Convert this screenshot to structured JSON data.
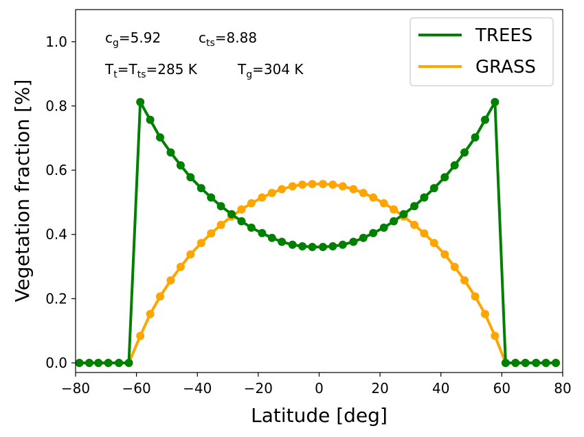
{
  "chart_data": {
    "type": "line",
    "title": "",
    "xlabel": "Latitude [deg]",
    "ylabel": "Vegetation fraction [%]",
    "xlim": [
      -80,
      80
    ],
    "ylim": [
      -0.03,
      1.1
    ],
    "xticks": [
      -80,
      -60,
      -40,
      -20,
      0,
      20,
      40,
      60,
      80
    ],
    "xtick_labels": [
      "−80",
      "−60",
      "−40",
      "−20",
      "0",
      "20",
      "40",
      "60",
      "80"
    ],
    "yticks": [
      0.0,
      0.2,
      0.4,
      0.6,
      0.8,
      1.0
    ],
    "ytick_labels": [
      "0.0",
      "0.2",
      "0.4",
      "0.6",
      "0.8",
      "1.0"
    ],
    "legend_position": "top-right",
    "x": [
      -78.75,
      -75.5,
      -72.5,
      -69.25,
      -65.75,
      -62.5,
      -58.75,
      -55.5,
      -52.25,
      -48.75,
      -45.5,
      -42.25,
      -38.75,
      -35.5,
      -32.25,
      -28.75,
      -25.5,
      -22.25,
      -18.75,
      -15.5,
      -12.25,
      -8.75,
      -5.5,
      -2.25,
      1.25,
      4.5,
      7.75,
      11.25,
      14.5,
      17.75,
      21.25,
      24.5,
      27.75,
      31.25,
      34.5,
      37.75,
      41.25,
      44.5,
      47.75,
      51.25,
      54.5,
      57.75,
      61.25,
      64.5,
      67.75,
      71.25,
      74.5,
      77.75
    ],
    "series": [
      {
        "name": "TREES",
        "color": "#008000",
        "values": [
          0,
          0,
          0,
          0,
          0,
          0,
          0.812,
          0.757,
          0.702,
          0.655,
          0.615,
          0.578,
          0.544,
          0.515,
          0.488,
          0.463,
          0.441,
          0.421,
          0.404,
          0.389,
          0.377,
          0.368,
          0.363,
          0.361,
          0.361,
          0.363,
          0.368,
          0.377,
          0.389,
          0.404,
          0.421,
          0.441,
          0.463,
          0.488,
          0.515,
          0.544,
          0.578,
          0.615,
          0.655,
          0.702,
          0.757,
          0.812,
          0,
          0,
          0,
          0,
          0,
          0
        ]
      },
      {
        "name": "GRASS",
        "color": "#FFA500",
        "values": [
          0,
          0,
          0,
          0,
          0,
          0,
          0.084,
          0.152,
          0.207,
          0.257,
          0.299,
          0.338,
          0.373,
          0.403,
          0.43,
          0.456,
          0.478,
          0.497,
          0.515,
          0.529,
          0.541,
          0.55,
          0.555,
          0.557,
          0.557,
          0.555,
          0.55,
          0.541,
          0.529,
          0.515,
          0.497,
          0.478,
          0.456,
          0.43,
          0.403,
          0.373,
          0.338,
          0.299,
          0.257,
          0.207,
          0.152,
          0.084,
          0,
          0,
          0,
          0,
          0,
          0
        ]
      }
    ],
    "annotations": {
      "cg_main": "c",
      "cg_sub": "g",
      "cg_value": "=5.92",
      "cts_main": "c",
      "cts_sub": "ts",
      "cts_value": "=8.88",
      "tt_main": "T",
      "tt_sub": "t",
      "tt_eq": "=T",
      "tts_sub": "ts",
      "tt_value": "=285 K",
      "tg_main": "T",
      "tg_sub": "g",
      "tg_value": "=304 K"
    }
  }
}
